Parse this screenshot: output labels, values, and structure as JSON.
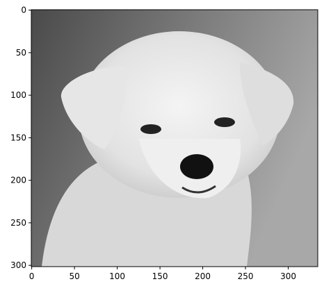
{
  "chart_data": {
    "type": "image",
    "xlim": [
      -0.5,
      334.5
    ],
    "ylim": [
      301.5,
      -0.5
    ],
    "xticks": [
      0,
      50,
      100,
      150,
      200,
      250,
      300
    ],
    "yticks": [
      0,
      50,
      100,
      150,
      200,
      250,
      300
    ]
  }
}
